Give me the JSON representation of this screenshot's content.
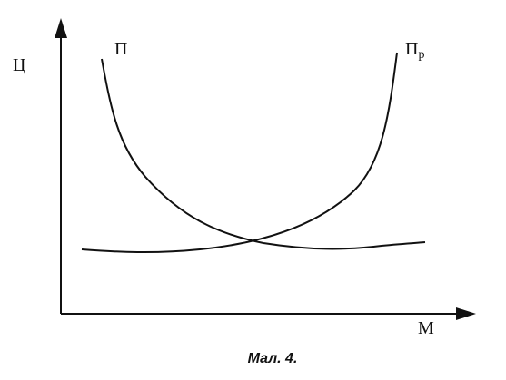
{
  "axes": {
    "y_label": "Ц",
    "x_label": "М"
  },
  "curves": [
    {
      "label": "П"
    },
    {
      "label": "П",
      "subscript": "р"
    }
  ],
  "caption": "Мал. 4."
}
